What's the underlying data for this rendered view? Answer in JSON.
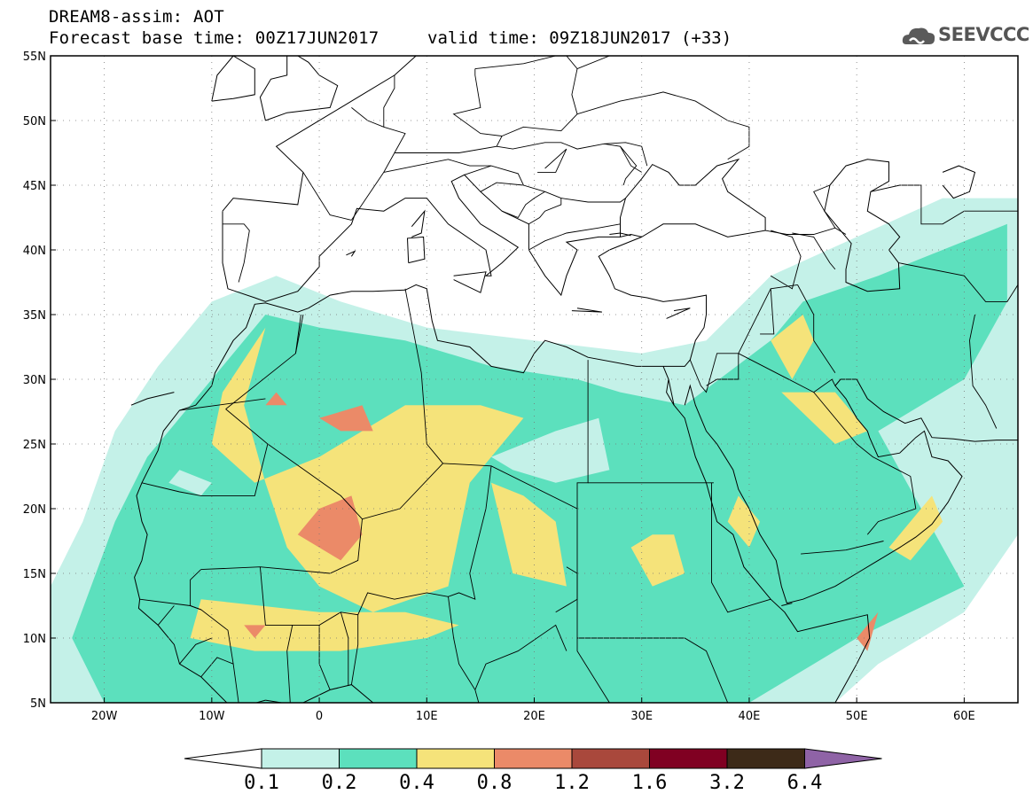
{
  "header": {
    "title": "DREAM8-assim: AOT",
    "base_time": "Forecast base time: 00Z17JUN2017",
    "valid_time": "valid time: 09Z18JUN2017 (+33)",
    "logo_text": "SEEVCCC"
  },
  "map": {
    "projection": "equirectangular",
    "lon_range": [
      -25,
      65
    ],
    "lat_range": [
      5,
      55
    ],
    "ocean_color": "#ffffff",
    "gridlines": "dotted",
    "lat_ticks": [
      {
        "value": 55,
        "label": "55N"
      },
      {
        "value": 50,
        "label": "50N"
      },
      {
        "value": 45,
        "label": "45N"
      },
      {
        "value": 40,
        "label": "40N"
      },
      {
        "value": 35,
        "label": "35N"
      },
      {
        "value": 30,
        "label": "30N"
      },
      {
        "value": 25,
        "label": "25N"
      },
      {
        "value": 20,
        "label": "20N"
      },
      {
        "value": 15,
        "label": "15N"
      },
      {
        "value": 10,
        "label": "10N"
      },
      {
        "value": 5,
        "label": "5N"
      }
    ],
    "lon_ticks": [
      {
        "value": -20,
        "label": "20W"
      },
      {
        "value": -10,
        "label": "10W"
      },
      {
        "value": 0,
        "label": "0"
      },
      {
        "value": 10,
        "label": "10E"
      },
      {
        "value": 20,
        "label": "20E"
      },
      {
        "value": 30,
        "label": "30E"
      },
      {
        "value": 40,
        "label": "40E"
      },
      {
        "value": 50,
        "label": "50E"
      },
      {
        "value": 60,
        "label": "60E"
      }
    ]
  },
  "colorbar": {
    "levels": [
      "0.1",
      "0.2",
      "0.4",
      "0.8",
      "1.2",
      "1.6",
      "3.2",
      "6.4"
    ],
    "colors": [
      "#ffffff",
      "#c4f1e8",
      "#5ce0bd",
      "#f5e37a",
      "#eb8a68",
      "#a9483c",
      "#800022",
      "#3d2a18",
      "#8f63a6"
    ]
  }
}
